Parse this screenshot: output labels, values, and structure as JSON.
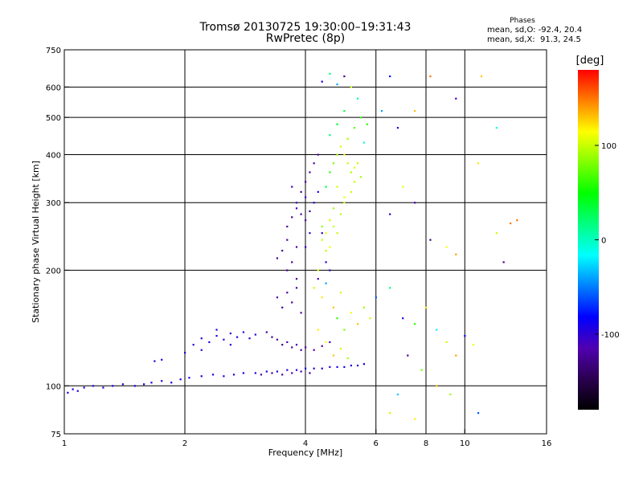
{
  "header": {
    "title_line1": "Tromsø 20130725 19:30:00–19:31:43",
    "title_line2": "RwPretec (8p)",
    "phases_label": "Phases",
    "stats_o": "mean, sd,O: -92.4, 20.4",
    "stats_x": "mean, sd,X:  91.3, 24.5"
  },
  "chart_data": {
    "type": "scatter",
    "title": "Tromsø 20130725 19:30:00–19:31:43",
    "subtitle": "RwPretec (8p)",
    "xlabel": "Frequency [MHz]",
    "ylabel": "Stationary phase Virtual Height [km]",
    "x_scale": "log",
    "y_scale": "log",
    "xlim": [
      1,
      16
    ],
    "ylim": [
      75,
      750
    ],
    "x_ticks": [
      1,
      2,
      4,
      6,
      8,
      10,
      16
    ],
    "x_tick_labels": [
      "1",
      "2",
      "4",
      "6",
      "8",
      "10",
      "16"
    ],
    "y_ticks": [
      75,
      100,
      200,
      300,
      400,
      500,
      600,
      750
    ],
    "y_tick_labels": [
      "75",
      "100",
      "200",
      "300",
      "400",
      "500",
      "600",
      "750"
    ],
    "grid_x": [
      2,
      4,
      6,
      8,
      10
    ],
    "grid_y": [
      100,
      200,
      300,
      400,
      500,
      600
    ],
    "colorbar": {
      "label": "[deg]",
      "ticks": [
        100,
        0,
        -100
      ],
      "tick_labels": [
        "100",
        "0",
        "-100"
      ],
      "range": [
        -180,
        180
      ],
      "colors": [
        "#000000",
        "#2a0050",
        "#5000b0",
        "#0000ff",
        "#0080ff",
        "#00ffff",
        "#00ff80",
        "#00ff00",
        "#80ff00",
        "#ffff00",
        "#ff8000",
        "#ff0000"
      ]
    },
    "series": [
      {
        "points": [
          [
            1.02,
            96,
            -95
          ],
          [
            1.05,
            98,
            -90
          ],
          [
            1.08,
            97,
            -95
          ],
          [
            1.12,
            99,
            -92
          ],
          [
            1.18,
            100,
            -95
          ],
          [
            1.25,
            99,
            -90
          ],
          [
            1.32,
            100,
            -92
          ],
          [
            1.4,
            101,
            -95
          ],
          [
            1.5,
            100,
            -92
          ],
          [
            1.58,
            101,
            -95
          ],
          [
            1.65,
            102,
            -90
          ],
          [
            1.75,
            103,
            -95
          ],
          [
            1.85,
            102,
            -92
          ],
          [
            1.95,
            104,
            -95
          ],
          [
            2.05,
            105,
            -95
          ],
          [
            2.2,
            106,
            -92
          ],
          [
            2.35,
            107,
            -95
          ],
          [
            2.5,
            106,
            -90
          ],
          [
            2.65,
            107,
            -95
          ],
          [
            2.8,
            108,
            -92
          ],
          [
            3.0,
            108,
            -95
          ],
          [
            3.2,
            109,
            -92
          ],
          [
            3.4,
            109,
            -95
          ],
          [
            3.6,
            110,
            -95
          ],
          [
            3.8,
            110,
            -95
          ],
          [
            4.0,
            111,
            -92
          ],
          [
            4.2,
            111,
            -95
          ],
          [
            4.4,
            111,
            -90
          ],
          [
            4.6,
            112,
            -95
          ],
          [
            4.8,
            112,
            -92
          ],
          [
            5.0,
            112,
            -95
          ],
          [
            5.2,
            113,
            -92
          ],
          [
            5.4,
            113,
            -95
          ],
          [
            5.6,
            114,
            -90
          ],
          [
            3.1,
            107,
            -120
          ],
          [
            3.3,
            108,
            -125
          ],
          [
            3.5,
            107,
            -120
          ],
          [
            3.7,
            108,
            -118
          ],
          [
            3.9,
            109,
            -120
          ],
          [
            4.1,
            108,
            -122
          ],
          [
            1.68,
            116,
            -100
          ],
          [
            1.75,
            117,
            -95
          ],
          [
            2.0,
            122,
            -100
          ],
          [
            2.1,
            128,
            -102
          ],
          [
            2.2,
            133,
            -100
          ],
          [
            2.3,
            130,
            -95
          ],
          [
            2.4,
            135,
            -100
          ],
          [
            2.5,
            132,
            -98
          ],
          [
            2.6,
            137,
            -100
          ],
          [
            2.7,
            134,
            -100
          ],
          [
            2.8,
            138,
            -102
          ],
          [
            2.9,
            133,
            -100
          ],
          [
            3.0,
            136,
            -100
          ],
          [
            2.2,
            124,
            -98
          ],
          [
            2.4,
            140,
            -100
          ],
          [
            2.6,
            128,
            -95
          ],
          [
            3.2,
            138,
            -120
          ],
          [
            3.3,
            134,
            -125
          ],
          [
            3.4,
            132,
            -120
          ],
          [
            3.5,
            128,
            -125
          ],
          [
            3.6,
            130,
            -120
          ],
          [
            3.7,
            126,
            -122
          ],
          [
            3.8,
            128,
            -120
          ],
          [
            3.9,
            124,
            -125
          ],
          [
            4.0,
            126,
            -120
          ],
          [
            4.2,
            124,
            -118
          ],
          [
            4.4,
            127,
            -120
          ],
          [
            4.6,
            130,
            -115
          ],
          [
            3.4,
            170,
            -120
          ],
          [
            3.5,
            160,
            -125
          ],
          [
            3.6,
            175,
            -120
          ],
          [
            3.7,
            165,
            -122
          ],
          [
            3.8,
            180,
            -118
          ],
          [
            3.9,
            155,
            -120
          ],
          [
            3.6,
            200,
            -125
          ],
          [
            3.7,
            210,
            -120
          ],
          [
            3.8,
            190,
            -122
          ],
          [
            3.4,
            215,
            -120
          ],
          [
            3.5,
            225,
            -125
          ],
          [
            3.6,
            240,
            -120
          ],
          [
            3.6,
            260,
            -120
          ],
          [
            3.7,
            275,
            -125
          ],
          [
            3.8,
            290,
            -120
          ],
          [
            3.9,
            280,
            -118
          ],
          [
            4.0,
            270,
            -120
          ],
          [
            4.1,
            285,
            -122
          ],
          [
            3.8,
            300,
            -120
          ],
          [
            3.9,
            320,
            -125
          ],
          [
            4.0,
            340,
            -120
          ],
          [
            4.1,
            360,
            -118
          ],
          [
            4.2,
            380,
            -120
          ],
          [
            4.3,
            400,
            -122
          ],
          [
            3.7,
            330,
            -120
          ],
          [
            4.0,
            310,
            -110
          ],
          [
            4.1,
            250,
            -100
          ],
          [
            4.0,
            230,
            -105
          ],
          [
            3.8,
            230,
            -115
          ],
          [
            4.2,
            300,
            -100
          ],
          [
            4.3,
            320,
            -95
          ],
          [
            4.4,
            250,
            -100
          ],
          [
            4.5,
            210,
            -95
          ],
          [
            4.3,
            190,
            -110
          ],
          [
            4.6,
            200,
            -100
          ],
          [
            4.5,
            330,
            30
          ],
          [
            4.6,
            360,
            60
          ],
          [
            4.7,
            380,
            80
          ],
          [
            4.8,
            400,
            90
          ],
          [
            4.9,
            420,
            100
          ],
          [
            5.0,
            400,
            110
          ],
          [
            5.1,
            380,
            100
          ],
          [
            5.2,
            360,
            95
          ],
          [
            5.3,
            370,
            105
          ],
          [
            5.4,
            380,
            100
          ],
          [
            5.5,
            350,
            90
          ],
          [
            5.2,
            320,
            100
          ],
          [
            5.0,
            310,
            110
          ],
          [
            4.8,
            330,
            100
          ],
          [
            4.7,
            290,
            90
          ],
          [
            4.6,
            270,
            100
          ],
          [
            4.5,
            250,
            110
          ],
          [
            4.7,
            260,
            100
          ],
          [
            4.9,
            280,
            95
          ],
          [
            5.0,
            300,
            105
          ],
          [
            5.3,
            340,
            100
          ],
          [
            5.1,
            440,
            90
          ],
          [
            5.3,
            470,
            70
          ],
          [
            5.5,
            500,
            60
          ],
          [
            4.4,
            240,
            100
          ],
          [
            4.6,
            230,
            110
          ],
          [
            4.8,
            250,
            100
          ],
          [
            4.5,
            225,
            95
          ],
          [
            4.4,
            260,
            85
          ],
          [
            4.6,
            450,
            20
          ],
          [
            4.8,
            480,
            40
          ],
          [
            5.0,
            520,
            30
          ],
          [
            5.4,
            560,
            10
          ],
          [
            5.6,
            430,
            -10
          ],
          [
            5.7,
            480,
            60
          ],
          [
            4.2,
            180,
            100
          ],
          [
            4.3,
            200,
            110
          ],
          [
            4.4,
            170,
            120
          ],
          [
            4.5,
            185,
            -40
          ],
          [
            4.7,
            160,
            130
          ],
          [
            4.9,
            175,
            100
          ],
          [
            4.8,
            150,
            60
          ],
          [
            5.0,
            140,
            80
          ],
          [
            5.2,
            155,
            110
          ],
          [
            5.4,
            145,
            130
          ],
          [
            5.6,
            160,
            90
          ],
          [
            5.8,
            150,
            100
          ],
          [
            4.3,
            140,
            120
          ],
          [
            4.5,
            130,
            110
          ],
          [
            4.7,
            120,
            130
          ],
          [
            4.9,
            125,
            100
          ],
          [
            5.1,
            118,
            90
          ],
          [
            6.0,
            170,
            -60
          ],
          [
            6.5,
            180,
            20
          ],
          [
            7.0,
            150,
            -100
          ],
          [
            7.5,
            145,
            60
          ],
          [
            8.0,
            160,
            120
          ],
          [
            8.5,
            140,
            -20
          ],
          [
            9.0,
            130,
            100
          ],
          [
            9.5,
            120,
            140
          ],
          [
            10.0,
            135,
            -80
          ],
          [
            10.5,
            128,
            110
          ],
          [
            7.2,
            120,
            -120
          ],
          [
            7.8,
            110,
            80
          ],
          [
            8.5,
            100,
            130
          ],
          [
            9.2,
            95,
            90
          ],
          [
            6.8,
            95,
            -30
          ],
          [
            6.5,
            85,
            100
          ],
          [
            7.5,
            82,
            120
          ],
          [
            10.8,
            85,
            -60
          ],
          [
            8.2,
            240,
            -130
          ],
          [
            9.0,
            230,
            110
          ],
          [
            9.5,
            220,
            140
          ],
          [
            12.0,
            250,
            100
          ],
          [
            12.5,
            210,
            -120
          ],
          [
            13.0,
            265,
            150
          ],
          [
            6.2,
            520,
            -40
          ],
          [
            6.8,
            470,
            -100
          ],
          [
            7.5,
            520,
            130
          ],
          [
            8.2,
            640,
            150
          ],
          [
            9.5,
            560,
            -110
          ],
          [
            11.0,
            640,
            130
          ],
          [
            12.0,
            470,
            -10
          ],
          [
            10.8,
            380,
            120
          ],
          [
            6.5,
            280,
            -100
          ],
          [
            7.0,
            330,
            110
          ],
          [
            7.5,
            300,
            -120
          ],
          [
            13.5,
            270,
            150
          ],
          [
            4.6,
            650,
            20
          ],
          [
            4.8,
            610,
            -40
          ],
          [
            5.0,
            640,
            -130
          ],
          [
            5.2,
            600,
            100
          ],
          [
            4.4,
            620,
            -90
          ],
          [
            6.5,
            640,
            -80
          ]
        ]
      }
    ]
  }
}
